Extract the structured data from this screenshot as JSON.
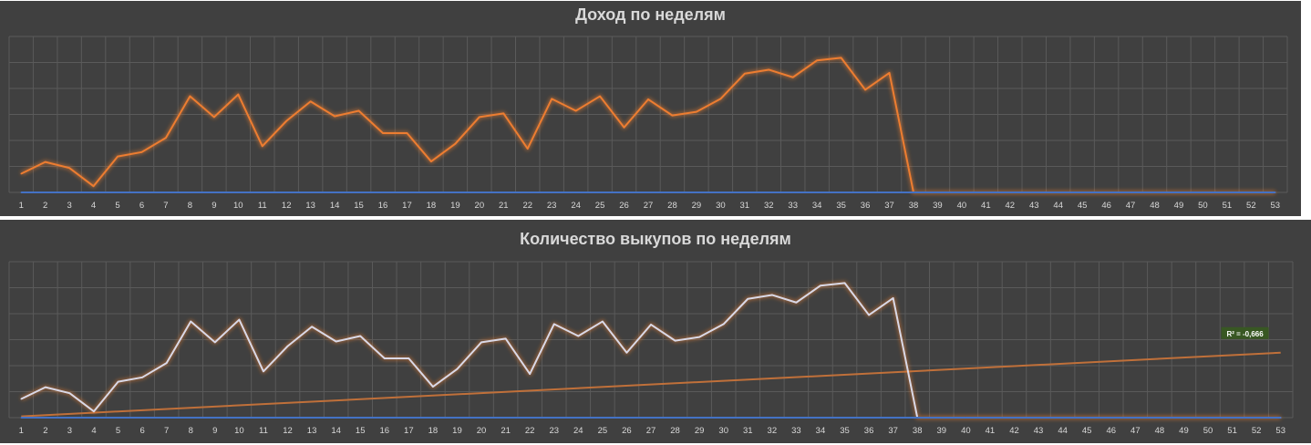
{
  "chart_data": [
    {
      "type": "line",
      "title": "Доход по неделям",
      "x": [
        1,
        2,
        3,
        4,
        5,
        6,
        7,
        8,
        9,
        10,
        11,
        12,
        13,
        14,
        15,
        16,
        17,
        18,
        19,
        20,
        21,
        22,
        23,
        24,
        25,
        26,
        27,
        28,
        29,
        30,
        31,
        32,
        33,
        34,
        35,
        36,
        37,
        38,
        39,
        40,
        41,
        42,
        43,
        44,
        45,
        46,
        47,
        48,
        49,
        50,
        51,
        52,
        53
      ],
      "ylim": [
        0,
        6
      ],
      "grid": true,
      "colors": {
        "background": "#404040",
        "grid": "#5a5a5a"
      },
      "series": [
        {
          "color": "#ed7d31",
          "values": [
            0.72,
            1.17,
            0.94,
            0.24,
            1.38,
            1.55,
            2.1,
            3.7,
            2.9,
            3.77,
            1.78,
            2.75,
            3.5,
            2.93,
            3.14,
            2.28,
            2.28,
            1.19,
            1.87,
            2.9,
            3.04,
            1.68,
            3.6,
            3.14,
            3.7,
            2.5,
            3.58,
            2.96,
            3.1,
            3.6,
            4.57,
            4.72,
            4.43,
            5.08,
            5.18,
            3.95,
            4.6,
            0,
            0,
            0,
            0,
            0,
            0,
            0,
            0,
            0,
            0,
            0,
            0,
            0,
            0,
            0,
            0
          ]
        },
        {
          "color": "#4472c4",
          "values": [
            0,
            0,
            0,
            0,
            0,
            0,
            0,
            0,
            0,
            0,
            0,
            0,
            0,
            0,
            0,
            0,
            0,
            0,
            0,
            0,
            0,
            0,
            0,
            0,
            0,
            0,
            0,
            0,
            0,
            0,
            0,
            0,
            0,
            0,
            0,
            0,
            0,
            0,
            0,
            0,
            0,
            0,
            0,
            0,
            0,
            0,
            0,
            0,
            0,
            0,
            0,
            0,
            0
          ]
        }
      ]
    },
    {
      "type": "line",
      "title": "Количество выкупов по неделям",
      "x": [
        1,
        2,
        3,
        4,
        5,
        6,
        7,
        8,
        9,
        10,
        11,
        12,
        13,
        14,
        15,
        16,
        17,
        18,
        19,
        20,
        21,
        22,
        23,
        24,
        25,
        26,
        27,
        28,
        29,
        30,
        31,
        32,
        33,
        34,
        35,
        36,
        37,
        38,
        39,
        40,
        41,
        42,
        43,
        44,
        45,
        46,
        47,
        48,
        49,
        50,
        51,
        52,
        53
      ],
      "ylim": [
        0,
        6
      ],
      "grid": true,
      "colors": {
        "background": "#404040",
        "grid": "#5a5a5a"
      },
      "series": [
        {
          "color": "#d9d9e8",
          "values": [
            0.72,
            1.17,
            0.94,
            0.24,
            1.38,
            1.55,
            2.1,
            3.7,
            2.9,
            3.77,
            1.78,
            2.75,
            3.5,
            2.93,
            3.14,
            2.28,
            2.28,
            1.19,
            1.87,
            2.9,
            3.04,
            1.68,
            3.6,
            3.14,
            3.7,
            2.5,
            3.58,
            2.96,
            3.1,
            3.6,
            4.57,
            4.72,
            4.43,
            5.08,
            5.18,
            3.95,
            4.6,
            0,
            0,
            0,
            0,
            0,
            0,
            0,
            0,
            0,
            0,
            0,
            0,
            0,
            0,
            0,
            0
          ]
        },
        {
          "color": "#4472c4",
          "values": [
            0,
            0,
            0,
            0,
            0,
            0,
            0,
            0,
            0,
            0,
            0,
            0,
            0,
            0,
            0,
            0,
            0,
            0,
            0,
            0,
            0,
            0,
            0,
            0,
            0,
            0,
            0,
            0,
            0,
            0,
            0,
            0,
            0,
            0,
            0,
            0,
            0,
            0,
            0,
            0,
            0,
            0,
            0,
            0,
            0,
            0,
            0,
            0,
            0,
            0,
            0,
            0,
            0
          ]
        }
      ],
      "trendline": {
        "type": "linear",
        "color": "#c0703a",
        "start": 0.05,
        "end": 2.5,
        "label": "R² = -0,666",
        "label_bg": "#385723"
      }
    }
  ]
}
